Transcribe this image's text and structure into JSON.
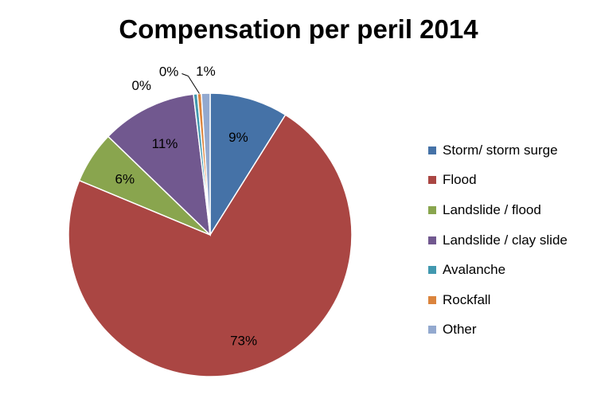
{
  "chart_data": {
    "type": "pie",
    "title": "Compensation per peril 2014",
    "categories": [
      "Storm/ storm surge",
      "Flood",
      "Landslide / flood",
      "Landslide / clay slide",
      "Avalanche",
      "Rockfall",
      "Other"
    ],
    "values": [
      9,
      73,
      6,
      11,
      0,
      0,
      1
    ],
    "value_labels": [
      "9%",
      "73%",
      "6%",
      "11%",
      "0%",
      "0%",
      "1%"
    ],
    "colors": [
      "#4572A7",
      "#AA4643",
      "#89A54E",
      "#71588F",
      "#4198AF",
      "#DB843D",
      "#93A9CF"
    ],
    "legend_position": "right"
  }
}
